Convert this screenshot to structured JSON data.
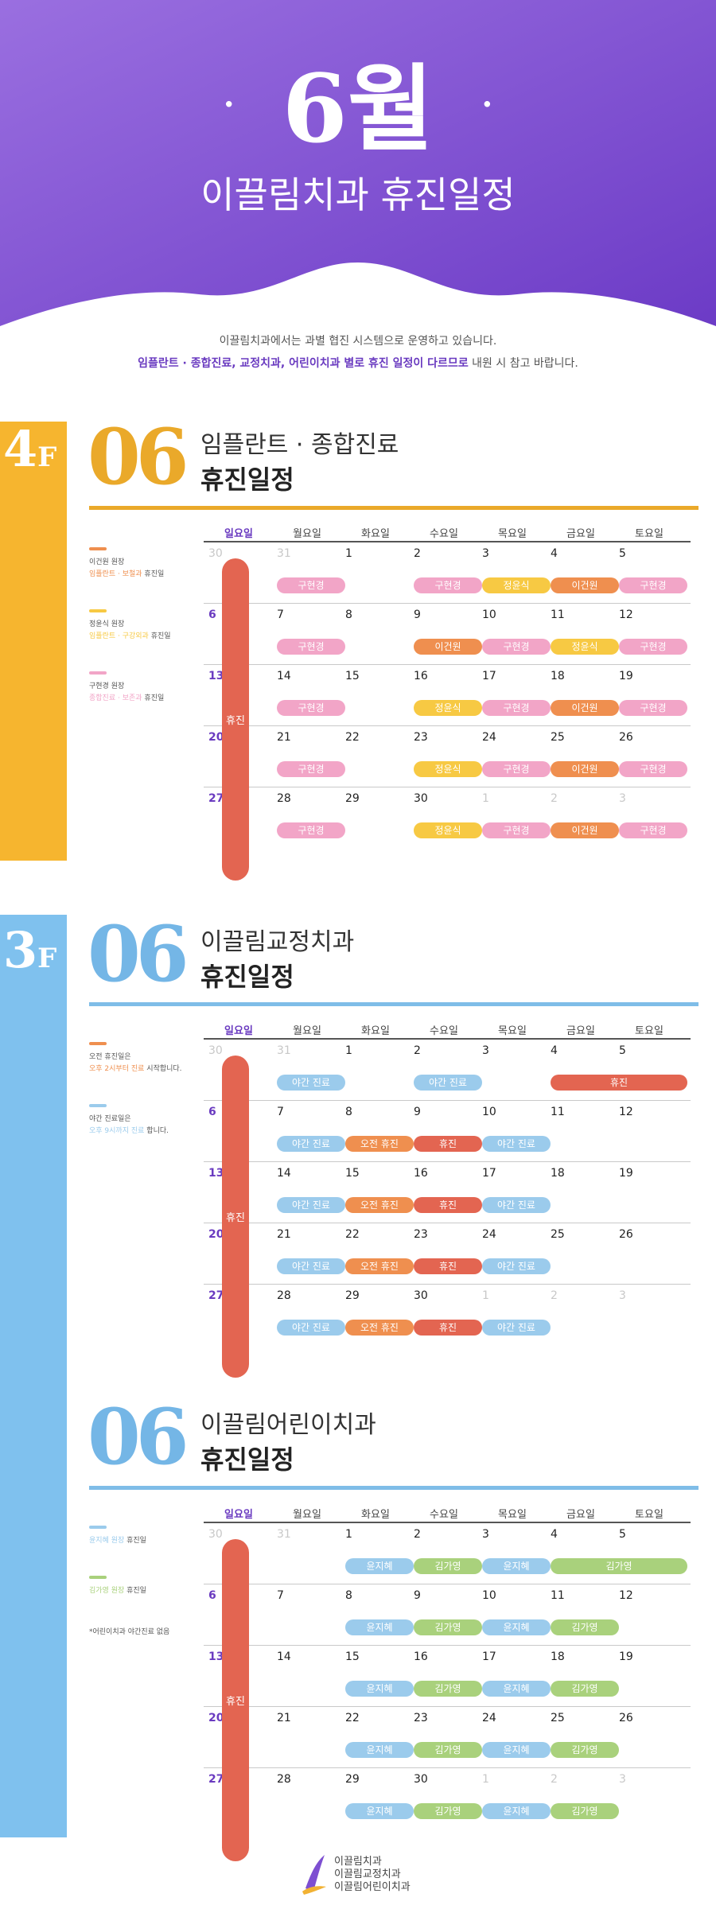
{
  "header": {
    "dot": "·",
    "month": "6월",
    "subtitle": "이끌림치과 휴진일정"
  },
  "intro": {
    "line1": "이끌림치과에서는 과별 협진 시스템으로 운영하고 있습니다.",
    "line2_bold": "임플란트 · 종합진료, 교정치과, 어린이치과 별로 휴진 일정이 다르므로",
    "line2_tail": " 내원 시 참고 바랍니다."
  },
  "colors": {
    "purple": "#7d4fd1",
    "yellow": "#f2b233",
    "blue": "#6fb7e6",
    "c_pink": "#f2a5c7",
    "c_yellow": "#f7c943",
    "c_orange": "#ef8f4f",
    "c_red": "#e36551",
    "c_blue": "#9bcbec",
    "c_green": "#a9d17c"
  },
  "days_header": [
    "일요일",
    "월요일",
    "화요일",
    "수요일",
    "목요일",
    "금요일",
    "토요일"
  ],
  "sunday_label": "휴진",
  "sections": [
    {
      "floor": {
        "num": "4",
        "f": "F"
      },
      "big": "06",
      "title1": "임플란트 · 종합진료",
      "title2": "휴진일정",
      "legend": [
        {
          "color": "c_orange",
          "name": "이건원 원장",
          "desc_hl": "임플란트 · 보철과",
          "desc": " 휴진일"
        },
        {
          "color": "c_yellow",
          "name": "정윤식 원장",
          "desc_hl": "임플란트 · 구강외과",
          "desc": " 휴진일"
        },
        {
          "color": "c_pink",
          "name": "구현경 원장",
          "desc_hl": "종합진료 · 보존과",
          "desc": " 휴진일"
        }
      ],
      "weeks": [
        {
          "days": [
            [
              "30",
              true
            ],
            [
              "31",
              true
            ],
            [
              "1",
              false
            ],
            [
              "2",
              false
            ],
            [
              "3",
              false
            ],
            [
              "4",
              false
            ],
            [
              "5",
              false
            ]
          ],
          "pills": [
            {
              "col": 1,
              "span": 1,
              "label": "구현경",
              "c": "c_pink"
            },
            {
              "col": 3,
              "span": 1,
              "label": "구현경",
              "c": "c_pink"
            },
            {
              "col": 4,
              "span": 1,
              "label": "정윤식",
              "c": "c_yellow"
            },
            {
              "col": 5,
              "span": 1,
              "label": "이건원",
              "c": "c_orange"
            },
            {
              "col": 6,
              "span": 1,
              "label": "구현경",
              "c": "c_pink"
            }
          ]
        },
        {
          "days": [
            [
              "6",
              false
            ],
            [
              "7",
              false
            ],
            [
              "8",
              false
            ],
            [
              "9",
              false
            ],
            [
              "10",
              false
            ],
            [
              "11",
              false
            ],
            [
              "12",
              false
            ]
          ],
          "pills": [
            {
              "col": 1,
              "span": 1,
              "label": "구현경",
              "c": "c_pink"
            },
            {
              "col": 3,
              "span": 1,
              "label": "이건원",
              "c": "c_orange"
            },
            {
              "col": 4,
              "span": 1,
              "label": "구현경",
              "c": "c_pink"
            },
            {
              "col": 5,
              "span": 1,
              "label": "정윤식",
              "c": "c_yellow"
            },
            {
              "col": 6,
              "span": 1,
              "label": "구현경",
              "c": "c_pink"
            }
          ]
        },
        {
          "days": [
            [
              "13",
              false
            ],
            [
              "14",
              false
            ],
            [
              "15",
              false
            ],
            [
              "16",
              false
            ],
            [
              "17",
              false
            ],
            [
              "18",
              false
            ],
            [
              "19",
              false
            ]
          ],
          "pills": [
            {
              "col": 1,
              "span": 1,
              "label": "구현경",
              "c": "c_pink"
            },
            {
              "col": 3,
              "span": 1,
              "label": "정윤식",
              "c": "c_yellow"
            },
            {
              "col": 4,
              "span": 1,
              "label": "구현경",
              "c": "c_pink"
            },
            {
              "col": 5,
              "span": 1,
              "label": "이건원",
              "c": "c_orange"
            },
            {
              "col": 6,
              "span": 1,
              "label": "구현경",
              "c": "c_pink"
            }
          ]
        },
        {
          "days": [
            [
              "20",
              false
            ],
            [
              "21",
              false
            ],
            [
              "22",
              false
            ],
            [
              "23",
              false
            ],
            [
              "24",
              false
            ],
            [
              "25",
              false
            ],
            [
              "26",
              false
            ]
          ],
          "pills": [
            {
              "col": 1,
              "span": 1,
              "label": "구현경",
              "c": "c_pink"
            },
            {
              "col": 3,
              "span": 1,
              "label": "정윤식",
              "c": "c_yellow"
            },
            {
              "col": 4,
              "span": 1,
              "label": "구현경",
              "c": "c_pink"
            },
            {
              "col": 5,
              "span": 1,
              "label": "이건원",
              "c": "c_orange"
            },
            {
              "col": 6,
              "span": 1,
              "label": "구현경",
              "c": "c_pink"
            }
          ]
        },
        {
          "days": [
            [
              "27",
              false
            ],
            [
              "28",
              false
            ],
            [
              "29",
              false
            ],
            [
              "30",
              false
            ],
            [
              "1",
              true
            ],
            [
              "2",
              true
            ],
            [
              "3",
              true
            ]
          ],
          "pills": [
            {
              "col": 1,
              "span": 1,
              "label": "구현경",
              "c": "c_pink"
            },
            {
              "col": 3,
              "span": 1,
              "label": "정윤식",
              "c": "c_yellow"
            },
            {
              "col": 4,
              "span": 1,
              "label": "구현경",
              "c": "c_pink"
            },
            {
              "col": 5,
              "span": 1,
              "label": "이건원",
              "c": "c_orange"
            },
            {
              "col": 6,
              "span": 1,
              "label": "구현경",
              "c": "c_pink"
            }
          ]
        }
      ]
    },
    {
      "floor": {
        "num": "3",
        "f": "F"
      },
      "big": "06",
      "title1": "이끌림교정치과",
      "title2": "휴진일정",
      "legend": [
        {
          "color": "c_orange",
          "name": "오전 휴진일은",
          "desc_hl": "오후 2시부터 진료",
          "desc": " 시작합니다."
        },
        {
          "color": "c_blue",
          "name": "야간 진료일은",
          "desc_hl": "오후 9시까지 진료",
          "desc": " 합니다."
        }
      ],
      "weeks": [
        {
          "days": [
            [
              "30",
              true
            ],
            [
              "31",
              true
            ],
            [
              "1",
              false
            ],
            [
              "2",
              false
            ],
            [
              "3",
              false
            ],
            [
              "4",
              false
            ],
            [
              "5",
              false
            ]
          ],
          "pills": [
            {
              "col": 1,
              "span": 1,
              "label": "야간 진료",
              "c": "c_blue"
            },
            {
              "col": 3,
              "span": 1,
              "label": "야간 진료",
              "c": "c_blue"
            },
            {
              "col": 5,
              "span": 2,
              "label": "휴진",
              "c": "c_red"
            }
          ]
        },
        {
          "days": [
            [
              "6",
              false
            ],
            [
              "7",
              false
            ],
            [
              "8",
              false
            ],
            [
              "9",
              false
            ],
            [
              "10",
              false
            ],
            [
              "11",
              false
            ],
            [
              "12",
              false
            ]
          ],
          "pills": [
            {
              "col": 1,
              "span": 1,
              "label": "야간 진료",
              "c": "c_blue"
            },
            {
              "col": 2,
              "span": 1,
              "label": "오전 휴진",
              "c": "c_orange"
            },
            {
              "col": 3,
              "span": 1,
              "label": "휴진",
              "c": "c_red"
            },
            {
              "col": 4,
              "span": 1,
              "label": "야간 진료",
              "c": "c_blue"
            }
          ]
        },
        {
          "days": [
            [
              "13",
              false
            ],
            [
              "14",
              false
            ],
            [
              "15",
              false
            ],
            [
              "16",
              false
            ],
            [
              "17",
              false
            ],
            [
              "18",
              false
            ],
            [
              "19",
              false
            ]
          ],
          "pills": [
            {
              "col": 1,
              "span": 1,
              "label": "야간 진료",
              "c": "c_blue"
            },
            {
              "col": 2,
              "span": 1,
              "label": "오전 휴진",
              "c": "c_orange"
            },
            {
              "col": 3,
              "span": 1,
              "label": "휴진",
              "c": "c_red"
            },
            {
              "col": 4,
              "span": 1,
              "label": "야간 진료",
              "c": "c_blue"
            }
          ]
        },
        {
          "days": [
            [
              "20",
              false
            ],
            [
              "21",
              false
            ],
            [
              "22",
              false
            ],
            [
              "23",
              false
            ],
            [
              "24",
              false
            ],
            [
              "25",
              false
            ],
            [
              "26",
              false
            ]
          ],
          "pills": [
            {
              "col": 1,
              "span": 1,
              "label": "야간 진료",
              "c": "c_blue"
            },
            {
              "col": 2,
              "span": 1,
              "label": "오전 휴진",
              "c": "c_orange"
            },
            {
              "col": 3,
              "span": 1,
              "label": "휴진",
              "c": "c_red"
            },
            {
              "col": 4,
              "span": 1,
              "label": "야간 진료",
              "c": "c_blue"
            }
          ]
        },
        {
          "days": [
            [
              "27",
              false
            ],
            [
              "28",
              false
            ],
            [
              "29",
              false
            ],
            [
              "30",
              false
            ],
            [
              "1",
              true
            ],
            [
              "2",
              true
            ],
            [
              "3",
              true
            ]
          ],
          "pills": [
            {
              "col": 1,
              "span": 1,
              "label": "야간 진료",
              "c": "c_blue"
            },
            {
              "col": 2,
              "span": 1,
              "label": "오전 휴진",
              "c": "c_orange"
            },
            {
              "col": 3,
              "span": 1,
              "label": "휴진",
              "c": "c_red"
            },
            {
              "col": 4,
              "span": 1,
              "label": "야간 진료",
              "c": "c_blue"
            }
          ]
        }
      ]
    },
    {
      "floor": null,
      "big": "06",
      "title1": "이끌림어린이치과",
      "title2": "휴진일정",
      "legend": [
        {
          "color": "c_blue",
          "name": "",
          "desc_hl": "윤지혜 원장",
          "desc": " 휴진일"
        },
        {
          "color": "c_green",
          "name": "",
          "desc_hl": "김가영 원장",
          "desc": " 휴진일"
        }
      ],
      "note": "*어린이치과 야간진료 없음",
      "weeks": [
        {
          "days": [
            [
              "30",
              true
            ],
            [
              "31",
              true
            ],
            [
              "1",
              false
            ],
            [
              "2",
              false
            ],
            [
              "3",
              false
            ],
            [
              "4",
              false
            ],
            [
              "5",
              false
            ]
          ],
          "pills": [
            {
              "col": 2,
              "span": 1,
              "label": "윤지혜",
              "c": "c_blue"
            },
            {
              "col": 3,
              "span": 1,
              "label": "김가영",
              "c": "c_green"
            },
            {
              "col": 4,
              "span": 1,
              "label": "윤지혜",
              "c": "c_blue"
            },
            {
              "col": 5,
              "span": 2,
              "label": "김가영",
              "c": "c_green"
            }
          ]
        },
        {
          "days": [
            [
              "6",
              false
            ],
            [
              "7",
              false
            ],
            [
              "8",
              false
            ],
            [
              "9",
              false
            ],
            [
              "10",
              false
            ],
            [
              "11",
              false
            ],
            [
              "12",
              false
            ]
          ],
          "pills": [
            {
              "col": 2,
              "span": 1,
              "label": "윤지혜",
              "c": "c_blue"
            },
            {
              "col": 3,
              "span": 1,
              "label": "김가영",
              "c": "c_green"
            },
            {
              "col": 4,
              "span": 1,
              "label": "윤지혜",
              "c": "c_blue"
            },
            {
              "col": 5,
              "span": 1,
              "label": "김가영",
              "c": "c_green"
            }
          ]
        },
        {
          "days": [
            [
              "13",
              false
            ],
            [
              "14",
              false
            ],
            [
              "15",
              false
            ],
            [
              "16",
              false
            ],
            [
              "17",
              false
            ],
            [
              "18",
              false
            ],
            [
              "19",
              false
            ]
          ],
          "pills": [
            {
              "col": 2,
              "span": 1,
              "label": "윤지혜",
              "c": "c_blue"
            },
            {
              "col": 3,
              "span": 1,
              "label": "김가영",
              "c": "c_green"
            },
            {
              "col": 4,
              "span": 1,
              "label": "윤지혜",
              "c": "c_blue"
            },
            {
              "col": 5,
              "span": 1,
              "label": "김가영",
              "c": "c_green"
            }
          ]
        },
        {
          "days": [
            [
              "20",
              false
            ],
            [
              "21",
              false
            ],
            [
              "22",
              false
            ],
            [
              "23",
              false
            ],
            [
              "24",
              false
            ],
            [
              "25",
              false
            ],
            [
              "26",
              false
            ]
          ],
          "pills": [
            {
              "col": 2,
              "span": 1,
              "label": "윤지혜",
              "c": "c_blue"
            },
            {
              "col": 3,
              "span": 1,
              "label": "김가영",
              "c": "c_green"
            },
            {
              "col": 4,
              "span": 1,
              "label": "윤지혜",
              "c": "c_blue"
            },
            {
              "col": 5,
              "span": 1,
              "label": "김가영",
              "c": "c_green"
            }
          ]
        },
        {
          "days": [
            [
              "27",
              false
            ],
            [
              "28",
              false
            ],
            [
              "29",
              false
            ],
            [
              "30",
              false
            ],
            [
              "1",
              true
            ],
            [
              "2",
              true
            ],
            [
              "3",
              true
            ]
          ],
          "pills": [
            {
              "col": 2,
              "span": 1,
              "label": "윤지혜",
              "c": "c_blue"
            },
            {
              "col": 3,
              "span": 1,
              "label": "김가영",
              "c": "c_green"
            },
            {
              "col": 4,
              "span": 1,
              "label": "윤지혜",
              "c": "c_blue"
            },
            {
              "col": 5,
              "span": 1,
              "label": "김가영",
              "c": "c_green"
            }
          ]
        }
      ]
    }
  ],
  "footer": {
    "lines": [
      "이끌림치과",
      "이끌림교정치과",
      "이끌림어린이치과"
    ]
  }
}
